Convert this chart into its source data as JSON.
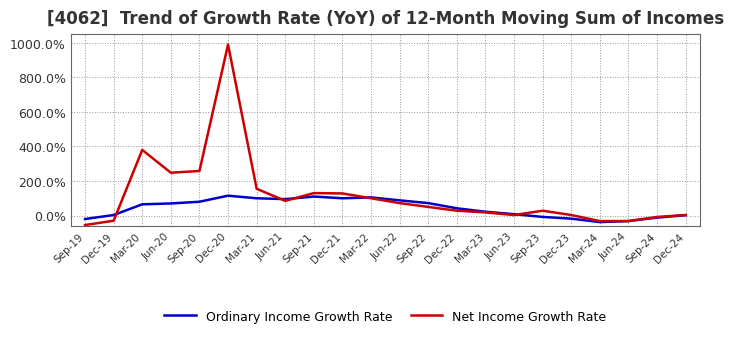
{
  "title": "[4062]  Trend of Growth Rate (YoY) of 12-Month Moving Sum of Incomes",
  "title_fontsize": 12,
  "background_color": "#ffffff",
  "grid_color": "#999999",
  "ordinary_color": "#0000cc",
  "net_color": "#cc0000",
  "legend_ordinary": "Ordinary Income Growth Rate",
  "legend_net": "Net Income Growth Rate",
  "ylim": [
    -60,
    1050
  ],
  "ytick_positions": [
    0,
    200,
    400,
    600,
    800,
    1000
  ],
  "ytick_labels": [
    "0.0%",
    "200.0%",
    "400.0%",
    "600.0%",
    "800.0%",
    "1000.0%"
  ],
  "x_labels": [
    "Sep-19",
    "Dec-19",
    "Mar-20",
    "Jun-20",
    "Sep-20",
    "Dec-20",
    "Mar-21",
    "Jun-21",
    "Sep-21",
    "Dec-21",
    "Mar-22",
    "Jun-22",
    "Sep-22",
    "Dec-22",
    "Mar-23",
    "Jun-23",
    "Sep-23",
    "Dec-23",
    "Mar-24",
    "Jun-24",
    "Sep-24",
    "Dec-24"
  ],
  "ordinary_income": [
    -20,
    3,
    65,
    70,
    80,
    115,
    100,
    95,
    110,
    100,
    105,
    88,
    72,
    42,
    22,
    8,
    -8,
    -18,
    -38,
    -32,
    -12,
    2
  ],
  "net_income": [
    -55,
    -30,
    380,
    248,
    258,
    990,
    155,
    85,
    130,
    128,
    100,
    72,
    50,
    28,
    18,
    3,
    28,
    3,
    -32,
    -32,
    -8,
    3
  ]
}
